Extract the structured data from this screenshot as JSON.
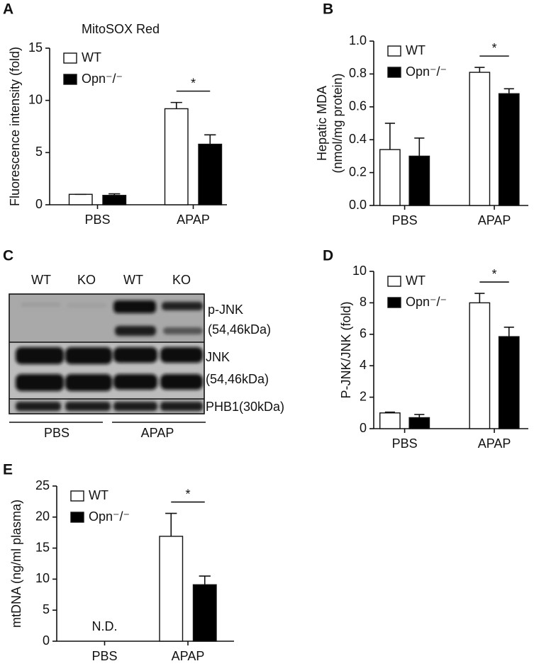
{
  "chart_data": [
    {
      "type": "bar",
      "panel": "A",
      "title": "MitoSOX Red",
      "ylabel": [
        "Fluorescence intensity (fold)"
      ],
      "categories": [
        "PBS",
        "APAP"
      ],
      "ylim": [
        0,
        15
      ],
      "yticks": [
        0,
        5,
        10,
        15
      ],
      "series": [
        {
          "name": "WT",
          "color": "#ffffff",
          "values": [
            1.0,
            9.2
          ],
          "errors": [
            0,
            0.6
          ]
        },
        {
          "name": "Opn⁻/⁻",
          "color": "#000000",
          "values": [
            0.9,
            5.8
          ],
          "errors": [
            0.15,
            0.9
          ]
        }
      ],
      "significance": "*"
    },
    {
      "type": "bar",
      "panel": "B",
      "ylabel": [
        "Hepatic MDA",
        "(nmol/mg protein)"
      ],
      "categories": [
        "PBS",
        "APAP"
      ],
      "ylim": [
        0,
        1.0
      ],
      "yticks": [
        {
          "value": 0,
          "label": "0.0"
        },
        0.2,
        0.4,
        0.6,
        0.8,
        {
          "value": 1,
          "label": "1.0"
        }
      ],
      "series": [
        {
          "name": "WT",
          "color": "#ffffff",
          "values": [
            0.34,
            0.81
          ],
          "errors": [
            0.16,
            0.03
          ]
        },
        {
          "name": "Opn⁻/⁻",
          "color": "#000000",
          "values": [
            0.3,
            0.68
          ],
          "errors": [
            0.11,
            0.03
          ]
        }
      ],
      "significance": "*"
    },
    {
      "type": "bar",
      "panel": "D",
      "ylabel": [
        "P-JNK/JNK (fold)"
      ],
      "categories": [
        "PBS",
        "APAP"
      ],
      "ylim": [
        0,
        10
      ],
      "yticks": [
        0,
        2,
        4,
        6,
        8,
        10
      ],
      "series": [
        {
          "name": "WT",
          "color": "#ffffff",
          "values": [
            1.0,
            8.0
          ],
          "errors": [
            0.05,
            0.6
          ]
        },
        {
          "name": "Opn⁻/⁻",
          "color": "#000000",
          "values": [
            0.7,
            5.85
          ],
          "errors": [
            0.2,
            0.6
          ]
        }
      ],
      "significance": "*"
    },
    {
      "type": "bar",
      "panel": "E",
      "ylabel": [
        "mtDNA (ng/ml plasma)"
      ],
      "categories": [
        "PBS",
        "APAP"
      ],
      "ylim": [
        0,
        25
      ],
      "yticks": [
        0,
        5,
        10,
        15,
        20,
        25
      ],
      "series": [
        {
          "name": "WT",
          "color": "#ffffff",
          "values": [
            null,
            16.9
          ],
          "errors": [
            null,
            3.7
          ]
        },
        {
          "name": "Opn⁻/⁻",
          "color": "#000000",
          "values": [
            null,
            9.1
          ],
          "errors": [
            null,
            1.4
          ]
        }
      ],
      "significance": "*",
      "category_annotations": [
        "N.D.",
        null
      ]
    }
  ],
  "blot": {
    "panel": "C",
    "lanes": [
      "WT",
      "KO",
      "WT",
      "KO"
    ],
    "bands": [
      "p-JNK",
      "(54,46kDa)",
      "JNK",
      "(54,46kDa)",
      "PHB1(30kDa)"
    ],
    "groups": [
      "PBS",
      "APAP"
    ]
  }
}
